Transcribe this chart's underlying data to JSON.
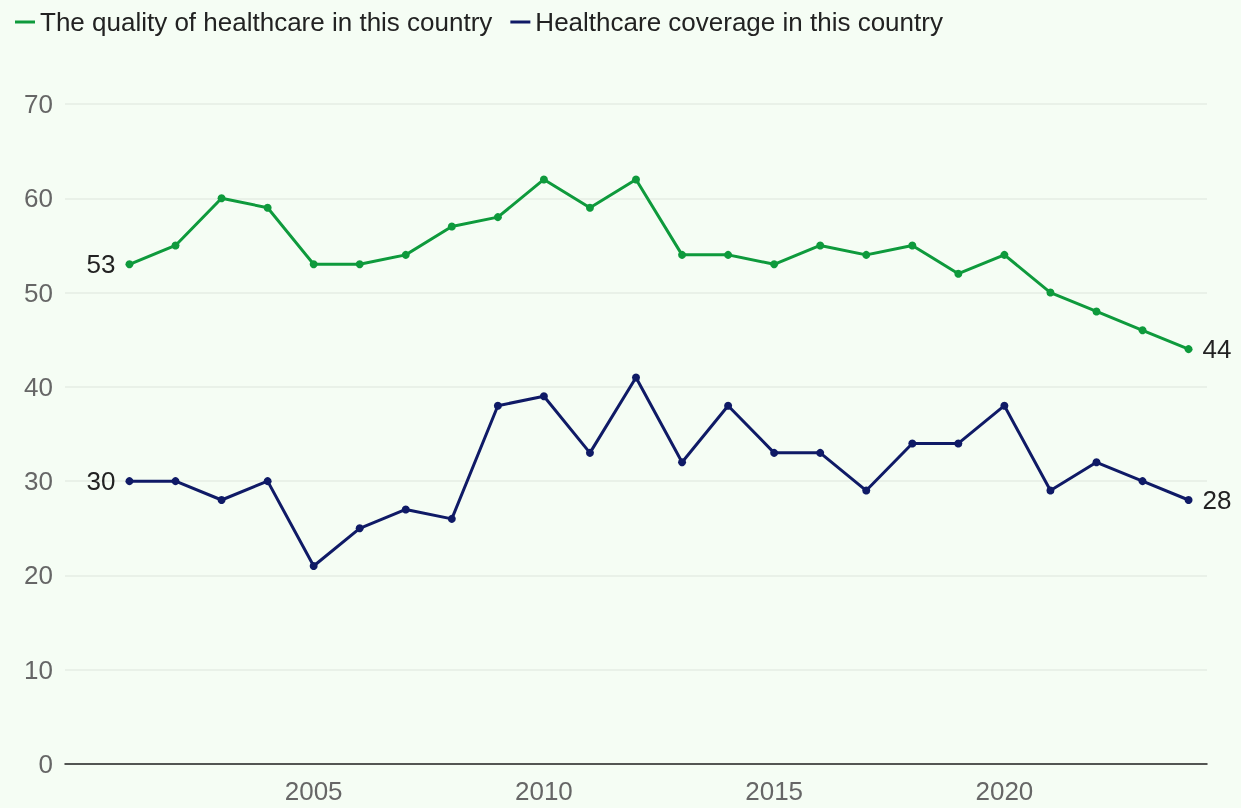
{
  "chart_data": {
    "type": "line",
    "x": [
      2001,
      2002,
      2003,
      2004,
      2005,
      2006,
      2007,
      2008,
      2009,
      2010,
      2011,
      2012,
      2013,
      2014,
      2015,
      2016,
      2017,
      2018,
      2019,
      2020,
      2021,
      2022,
      2023,
      2024
    ],
    "series": [
      {
        "name": "The quality of healthcare in this country",
        "color": "#0e9a3c",
        "values": [
          53,
          55,
          60,
          59,
          53,
          53,
          54,
          57,
          58,
          62,
          59,
          62,
          54,
          54,
          53,
          55,
          54,
          55,
          52,
          54,
          50,
          48,
          46,
          44
        ],
        "value_labels": [
          "53",
          null,
          null,
          null,
          null,
          null,
          null,
          null,
          null,
          null,
          null,
          null,
          null,
          null,
          null,
          null,
          null,
          null,
          null,
          null,
          null,
          null,
          null,
          "44"
        ]
      },
      {
        "name": "Healthcare coverage in this country",
        "color": "#0f1a66",
        "values": [
          30,
          30,
          28,
          30,
          21,
          25,
          27,
          26,
          38,
          39,
          33,
          41,
          32,
          38,
          33,
          33,
          29,
          34,
          34,
          38,
          29,
          32,
          30,
          28
        ],
        "value_labels": [
          "30",
          null,
          null,
          null,
          null,
          null,
          null,
          null,
          null,
          null,
          null,
          null,
          null,
          null,
          null,
          null,
          null,
          null,
          null,
          null,
          null,
          null,
          null,
          "28"
        ]
      }
    ],
    "xlim": [
      1999.6,
      2024.4
    ],
    "xticks": [
      2005,
      2010,
      2015,
      2020
    ],
    "ylim": [
      0,
      70
    ],
    "yticks": [
      0,
      10,
      20,
      30,
      40,
      50,
      60,
      70
    ],
    "grid": "y",
    "legend": "top left",
    "marker": "circle",
    "line_style": "solid"
  }
}
